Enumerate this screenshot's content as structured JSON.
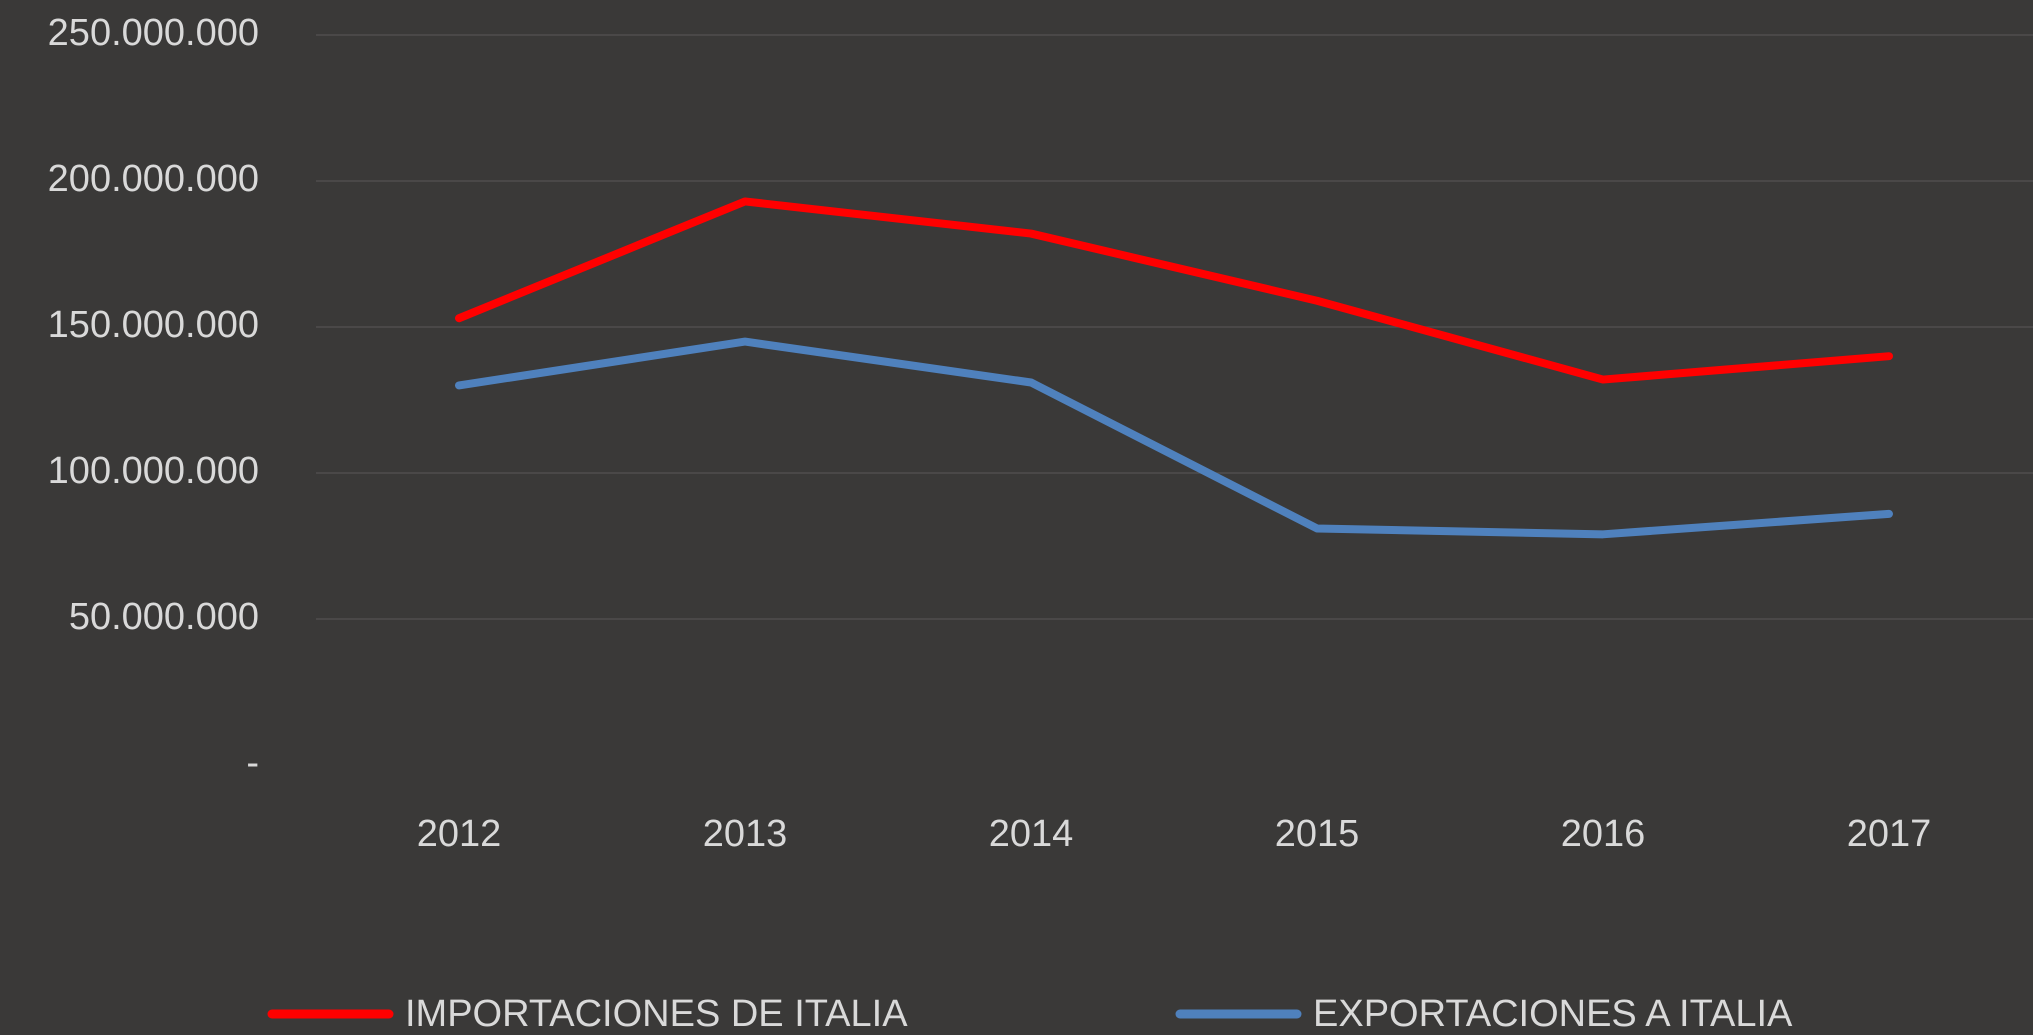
{
  "chart_data": {
    "type": "line",
    "categories": [
      "2012",
      "2013",
      "2014",
      "2015",
      "2016",
      "2017"
    ],
    "series": [
      {
        "name": "IMPORTACIONES DE ITALIA",
        "color": "#ff0000",
        "values": [
          153000000,
          193000000,
          182000000,
          159000000,
          132000000,
          140000000
        ]
      },
      {
        "name": "EXPORTACIONES A ITALIA",
        "color": "#4f81bd",
        "values": [
          130000000,
          145000000,
          131000000,
          81000000,
          79000000,
          86000000
        ]
      }
    ],
    "ylim": [
      0,
      250000000
    ],
    "yticks": [
      {
        "value": 0,
        "label": "-"
      },
      {
        "value": 50000000,
        "label": "50.000.000"
      },
      {
        "value": 100000000,
        "label": "100.000.000"
      },
      {
        "value": 150000000,
        "label": "150.000.000"
      },
      {
        "value": 200000000,
        "label": "200.000.000"
      },
      {
        "value": 250000000,
        "label": "250.000.000"
      }
    ],
    "grid": true,
    "legend": "bottom"
  }
}
